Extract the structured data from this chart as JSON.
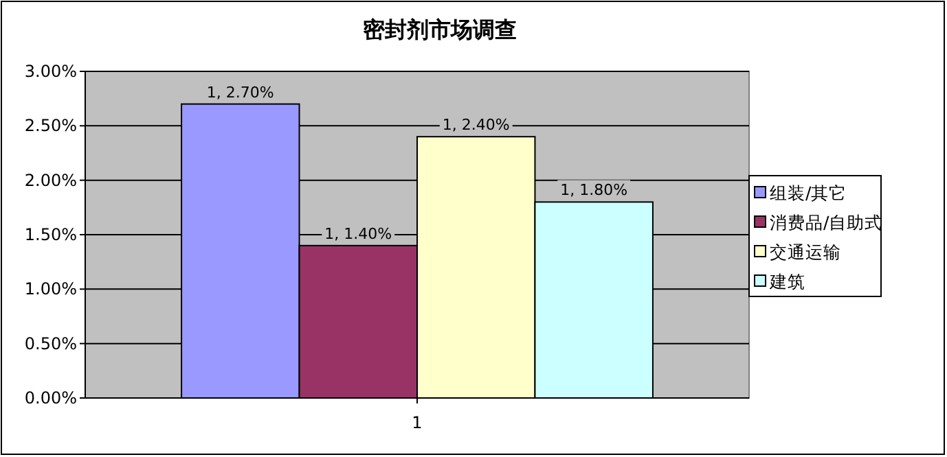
{
  "chart_data": {
    "type": "bar",
    "title": "密封剂市场调查",
    "categories": [
      "1"
    ],
    "series": [
      {
        "name": "组装/其它",
        "color": "#9999ff",
        "values": [
          2.7
        ],
        "value_labels": [
          "1, 2.70%"
        ]
      },
      {
        "name": "消费品/自助式",
        "color": "#993366",
        "values": [
          1.4
        ],
        "value_labels": [
          "1, 1.40%"
        ]
      },
      {
        "name": "交通运输",
        "color": "#ffffcc",
        "values": [
          2.4
        ],
        "value_labels": [
          "1, 2.40%"
        ]
      },
      {
        "name": "建筑",
        "color": "#ccffff",
        "values": [
          1.8
        ],
        "value_labels": [
          "1, 1.80%"
        ]
      }
    ],
    "ylim": [
      0,
      3
    ],
    "yticks": [
      {
        "value": 0,
        "label": "0.00%"
      },
      {
        "value": 0.5,
        "label": "0.50%"
      },
      {
        "value": 1,
        "label": "1.00%"
      },
      {
        "value": 1.5,
        "label": "1.50%"
      },
      {
        "value": 2,
        "label": "2.00%"
      },
      {
        "value": 2.5,
        "label": "2.50%"
      },
      {
        "value": 3,
        "label": "3.00%"
      }
    ],
    "grid": "y",
    "legend": "right"
  }
}
